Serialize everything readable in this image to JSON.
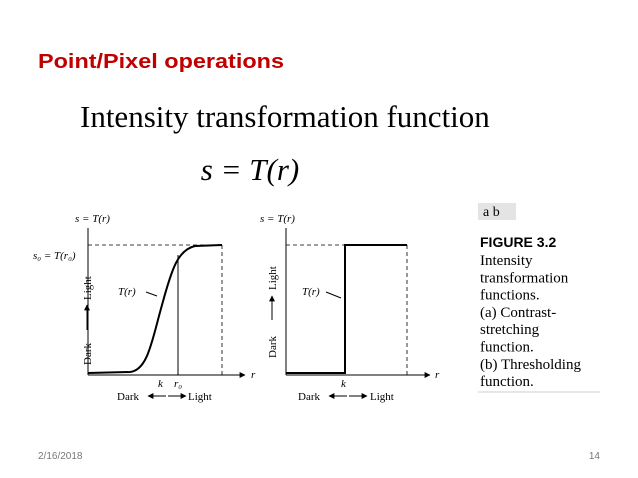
{
  "header": {
    "title": "Point/Pixel operations"
  },
  "heading": "Intensity transformation function",
  "equation": "s = T(r)",
  "figures": [
    {
      "y_axis": "s = T(r)",
      "s0": "s₀ = T(r₀)",
      "curve": "T(r)",
      "x_axis": "r",
      "y_light": "Light",
      "y_dark": "Dark",
      "k": "k",
      "r0": "r₀",
      "x_dark": "Dark",
      "x_light": "Light"
    },
    {
      "y_axis": "s = T(r)",
      "curve": "T(r)",
      "x_axis": "r",
      "y_light": "Light",
      "y_dark": "Dark",
      "k": "k",
      "x_dark": "Dark",
      "x_light": "Light"
    }
  ],
  "caption": {
    "panels": "a b",
    "figure": "FIGURE 3.2",
    "lines": [
      "Intensity",
      "transformation",
      "functions.",
      "(a) Contrast-",
      "stretching",
      "function.",
      "(b) Thresholding",
      "function."
    ]
  },
  "footer": {
    "date": "2/16/2018",
    "page": "14"
  }
}
